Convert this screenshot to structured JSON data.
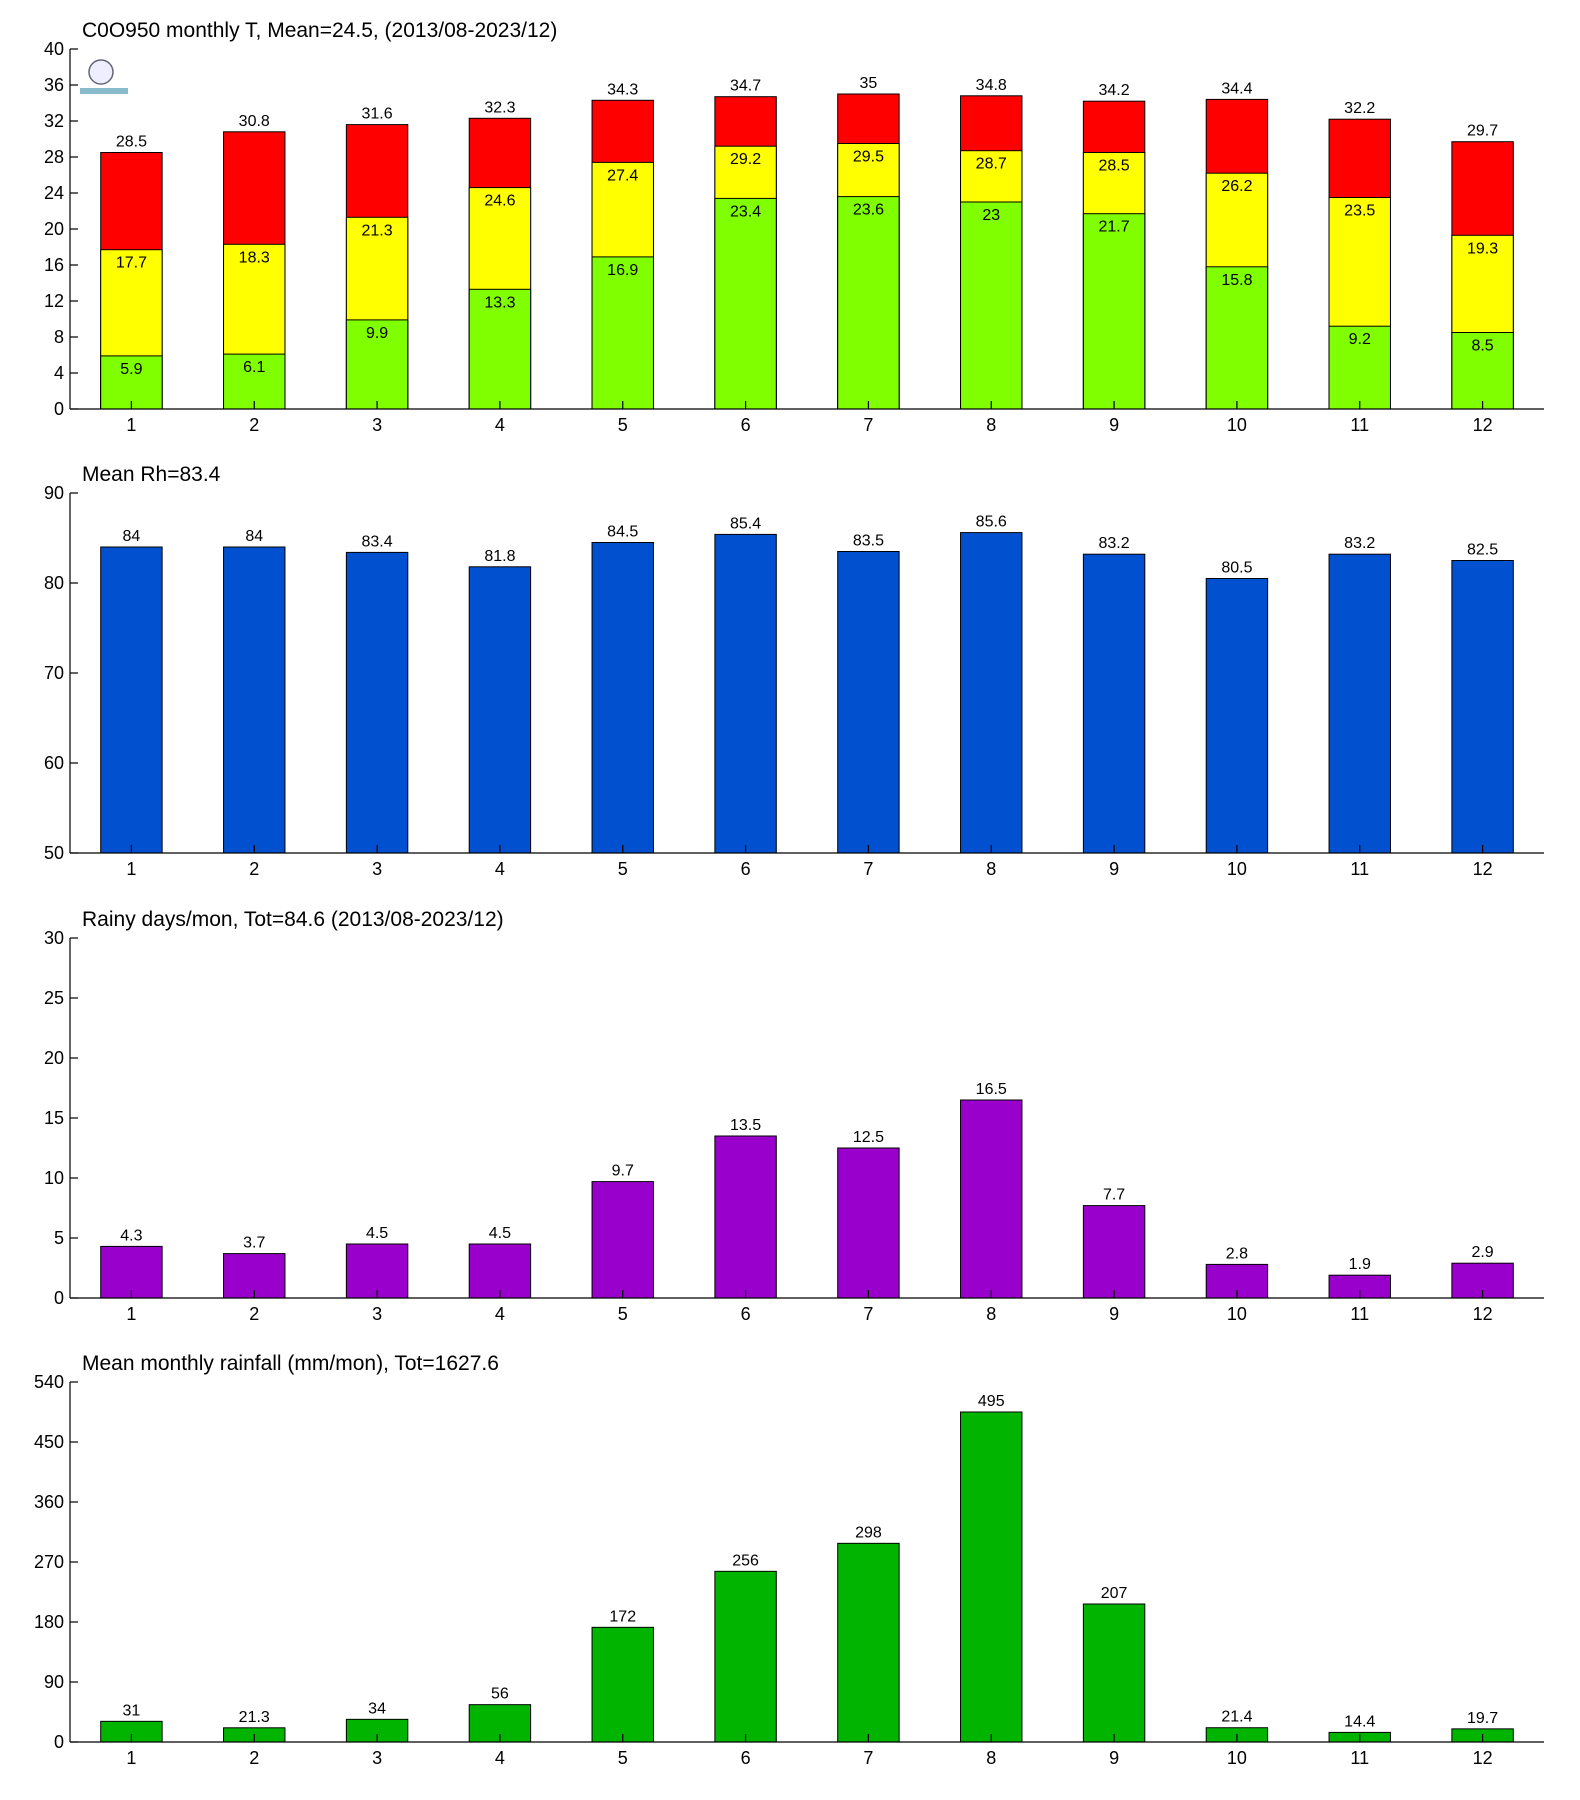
{
  "chart_data": [
    {
      "type": "bar",
      "title": "C0O950 monthly T, Mean=24.5, (2013/08-2023/12)",
      "categories": [
        "1",
        "2",
        "3",
        "4",
        "5",
        "6",
        "7",
        "8",
        "9",
        "10",
        "11",
        "12"
      ],
      "series": [
        {
          "color": "#ff0000",
          "values": [
            28.5,
            30.8,
            31.6,
            32.3,
            34.3,
            34.7,
            35,
            34.8,
            34.2,
            34.4,
            32.2,
            29.7
          ]
        },
        {
          "color": "#ffff00",
          "values": [
            17.7,
            18.3,
            21.3,
            24.6,
            27.4,
            29.2,
            29.5,
            28.7,
            28.5,
            26.2,
            23.5,
            19.3
          ]
        },
        {
          "color": "#80ff00",
          "values": [
            5.9,
            6.1,
            9.9,
            13.3,
            16.9,
            23.4,
            23.6,
            23,
            21.7,
            15.8,
            9.2,
            8.5
          ]
        }
      ],
      "ylim": [
        0,
        40
      ],
      "yticks": [
        0,
        4,
        8,
        12,
        16,
        20,
        24,
        28,
        32,
        36,
        40
      ]
    },
    {
      "type": "bar",
      "title": "Mean Rh=83.4",
      "categories": [
        "1",
        "2",
        "3",
        "4",
        "5",
        "6",
        "7",
        "8",
        "9",
        "10",
        "11",
        "12"
      ],
      "values": [
        84,
        84,
        83.4,
        81.8,
        84.5,
        85.4,
        83.5,
        85.6,
        83.2,
        80.5,
        83.2,
        82.5
      ],
      "color": "#0050d0",
      "ylim": [
        50,
        90
      ],
      "yticks": [
        50,
        60,
        70,
        80,
        90
      ]
    },
    {
      "type": "bar",
      "title": "Rainy days/mon, Tot=84.6 (2013/08-2023/12)",
      "categories": [
        "1",
        "2",
        "3",
        "4",
        "5",
        "6",
        "7",
        "8",
        "9",
        "10",
        "11",
        "12"
      ],
      "values": [
        4.3,
        3.7,
        4.5,
        4.5,
        9.7,
        13.5,
        12.5,
        16.5,
        7.7,
        2.8,
        1.9,
        2.9
      ],
      "color": "#9900cc",
      "ylim": [
        0,
        30
      ],
      "yticks": [
        0,
        5,
        10,
        15,
        20,
        25,
        30
      ]
    },
    {
      "type": "bar",
      "title": "Mean monthly rainfall (mm/mon), Tot=1627.6",
      "categories": [
        "1",
        "2",
        "3",
        "4",
        "5",
        "6",
        "7",
        "8",
        "9",
        "10",
        "11",
        "12"
      ],
      "values": [
        31,
        21.3,
        34,
        56,
        172,
        256,
        298,
        495,
        207,
        21.4,
        14.4,
        19.7
      ],
      "color": "#00b400",
      "ylim": [
        0,
        540
      ],
      "yticks": [
        0,
        90,
        180,
        270,
        360,
        450,
        540
      ]
    }
  ]
}
